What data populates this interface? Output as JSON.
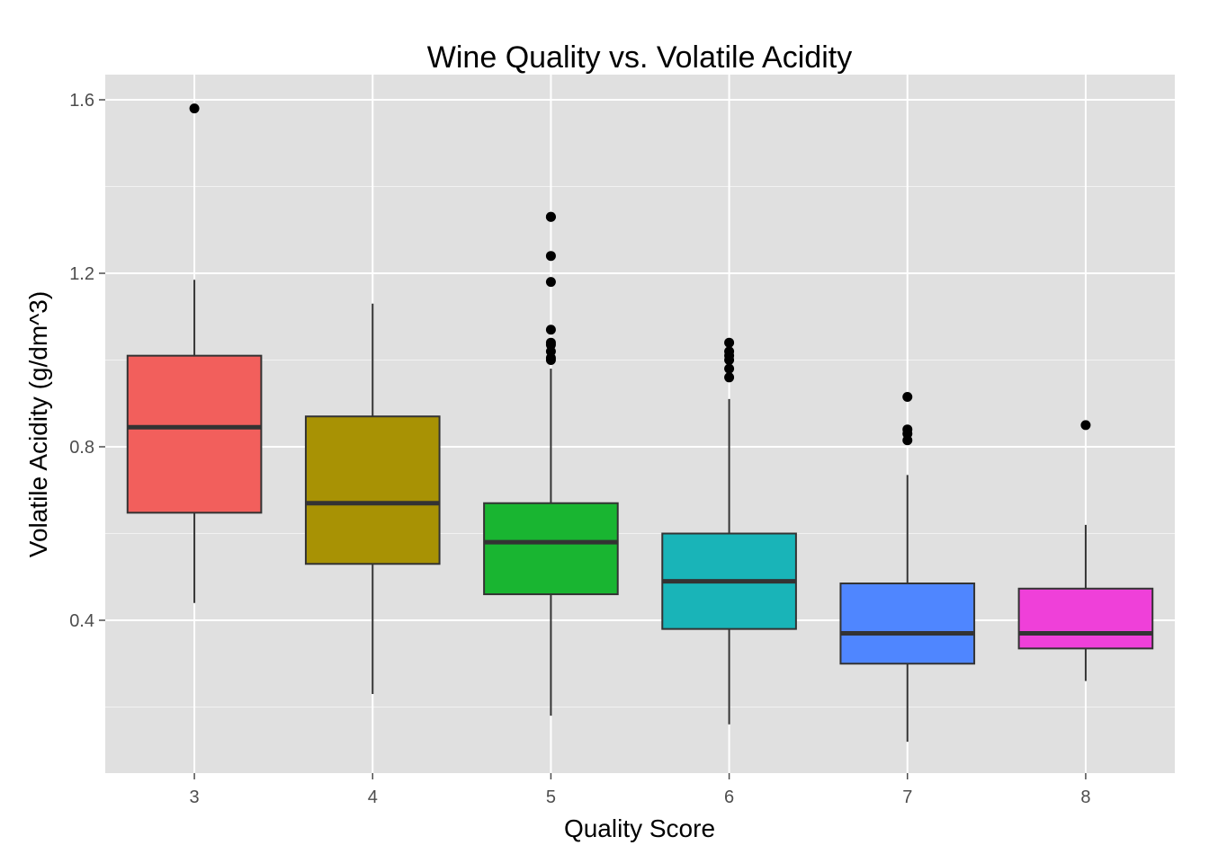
{
  "chart_data": {
    "type": "boxplot",
    "title": "Wine Quality vs. Volatile Acidity",
    "xlabel": "Quality Score",
    "ylabel": "Volatile Acidity (g/dm^3)",
    "ylim": [
      0.1,
      1.65
    ],
    "y_ticks": [
      0.4,
      0.8,
      1.2,
      1.6
    ],
    "y_tick_labels": [
      "0.4",
      "0.8",
      "1.2",
      "1.6"
    ],
    "grid": true,
    "legend": "none",
    "categories": [
      "3",
      "4",
      "5",
      "6",
      "7",
      "8"
    ],
    "boxes": [
      {
        "category": "3",
        "color": "#F25F5C",
        "lower_whisker": 0.44,
        "q1": 0.648,
        "median": 0.845,
        "q3": 1.01,
        "upper_whisker": 1.185,
        "outliers": [
          1.58
        ]
      },
      {
        "category": "4",
        "color": "#A89204",
        "lower_whisker": 0.23,
        "q1": 0.53,
        "median": 0.67,
        "q3": 0.87,
        "upper_whisker": 1.13,
        "outliers": []
      },
      {
        "category": "5",
        "color": "#19B531",
        "lower_whisker": 0.18,
        "q1": 0.46,
        "median": 0.58,
        "q3": 0.67,
        "upper_whisker": 0.98,
        "outliers": [
          1.0,
          1.005,
          1.02,
          1.035,
          1.04,
          1.07,
          1.18,
          1.24,
          1.33,
          1.33
        ]
      },
      {
        "category": "6",
        "color": "#19B4B8",
        "lower_whisker": 0.16,
        "q1": 0.38,
        "median": 0.49,
        "q3": 0.6,
        "upper_whisker": 0.91,
        "outliers": [
          0.96,
          0.98,
          1.0,
          1.01,
          1.02,
          1.04
        ]
      },
      {
        "category": "7",
        "color": "#4F86FF",
        "lower_whisker": 0.12,
        "q1": 0.3,
        "median": 0.37,
        "q3": 0.485,
        "upper_whisker": 0.735,
        "outliers": [
          0.815,
          0.83,
          0.84,
          0.915
        ]
      },
      {
        "category": "8",
        "color": "#EF40D9",
        "lower_whisker": 0.26,
        "q1": 0.335,
        "median": 0.37,
        "q3": 0.473,
        "upper_whisker": 0.62,
        "outliers": [
          0.85
        ]
      }
    ]
  }
}
